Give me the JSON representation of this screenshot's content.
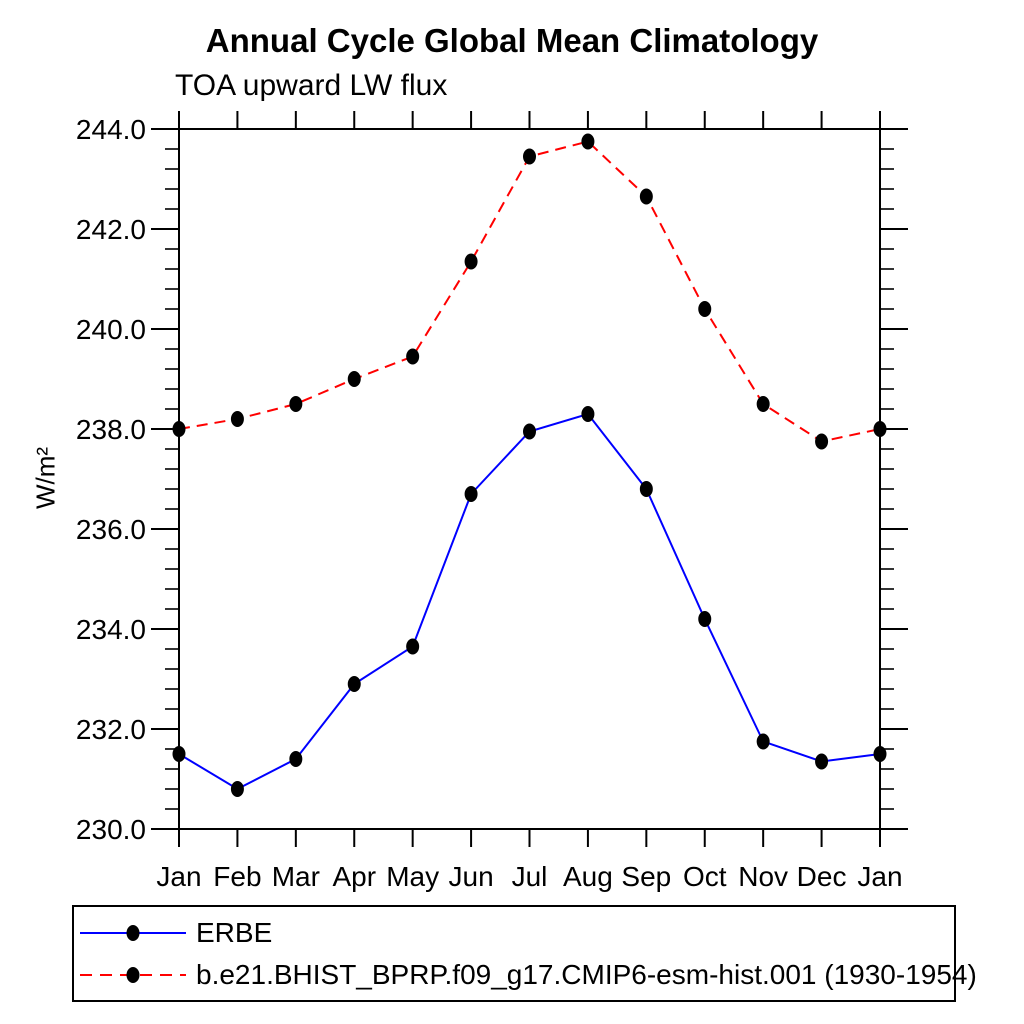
{
  "chart_data": {
    "type": "line",
    "title": "Annual Cycle Global Mean Climatology",
    "subtitle": "TOA upward LW flux",
    "ylabel": "W/m²",
    "xlabel": "",
    "categories": [
      "Jan",
      "Feb",
      "Mar",
      "Apr",
      "May",
      "Jun",
      "Jul",
      "Aug",
      "Sep",
      "Oct",
      "Nov",
      "Dec",
      "Jan"
    ],
    "ylim": [
      230.0,
      244.0
    ],
    "ytick_interval": 2.0,
    "yminor_interval": 0.4,
    "ytick_labels": [
      "230.0",
      "232.0",
      "234.0",
      "236.0",
      "238.0",
      "240.0",
      "242.0",
      "244.0"
    ],
    "grid": false,
    "legend_position": "bottom-left-box",
    "marker": "filled-circle",
    "marker_color": "#000000",
    "axis_color": "#000000",
    "series": [
      {
        "name": "ERBE",
        "color": "#0000ff",
        "line_style": "solid",
        "values": [
          231.5,
          230.8,
          231.4,
          232.9,
          233.65,
          236.7,
          237.95,
          238.3,
          236.8,
          234.2,
          231.75,
          231.35,
          231.5
        ]
      },
      {
        "name": "b.e21.BHIST_BPRP.f09_g17.CMIP6-esm-hist.001 (1930-1954)",
        "color": "#ff0000",
        "line_style": "dashed",
        "values": [
          238.0,
          238.2,
          238.5,
          239.0,
          239.45,
          241.35,
          243.45,
          243.75,
          242.65,
          240.4,
          238.5,
          237.75,
          238.0
        ]
      }
    ]
  }
}
